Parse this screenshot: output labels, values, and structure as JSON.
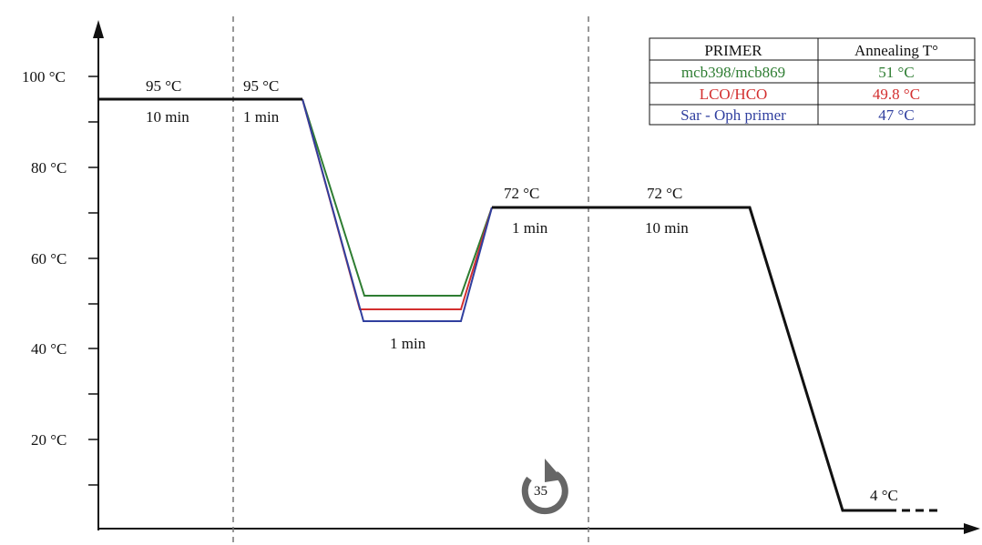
{
  "y_axis": {
    "tick_labels": [
      "100 °C",
      "80 °C",
      "60 °C",
      "40 °C",
      "20 °C"
    ]
  },
  "steps": {
    "initial_denaturation": {
      "temp": "95 °C",
      "time": "10 min"
    },
    "denaturation": {
      "temp": "95 °C",
      "time": "1 min"
    },
    "annealing": {
      "time": "1 min"
    },
    "extension": {
      "temp": "72 °C",
      "time": "1 min"
    },
    "final_extension": {
      "temp": "72 °C",
      "time": "10 min"
    },
    "hold": {
      "temp": "4 °C"
    }
  },
  "cycles": {
    "count": "35",
    "icon": "cycle-arrow-icon"
  },
  "table": {
    "headers": [
      "PRIMER",
      "Annealing T°"
    ],
    "rows": [
      {
        "primer": "mcb398/mcb869",
        "temp": "51 °C",
        "color": "#2e7d32"
      },
      {
        "primer": "LCO/HCO",
        "temp": "49.8 °C",
        "color": "#d32f2f"
      },
      {
        "primer": "Sar - Oph primer",
        "temp": "47 °C",
        "color": "#303f9f"
      }
    ]
  },
  "colors": {
    "profile": "#111111",
    "mcb398": "#2e7d32",
    "lco": "#d32f2f",
    "sar": "#303f9f",
    "dashed": "#777777",
    "cycle_icon": "#666666"
  }
}
